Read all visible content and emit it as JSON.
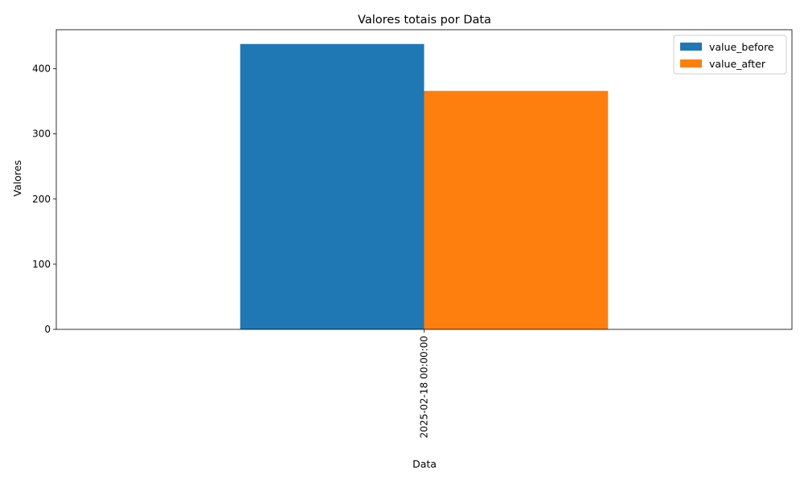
{
  "chart_data": {
    "type": "bar",
    "title": "Valores totais por Data",
    "xlabel": "Data",
    "ylabel": "Valores",
    "categories": [
      "2025-02-18 00:00:00"
    ],
    "series": [
      {
        "name": "value_before",
        "values": [
          438
        ],
        "color": "#1f77b4"
      },
      {
        "name": "value_after",
        "values": [
          366
        ],
        "color": "#ff7f0e"
      }
    ],
    "ylim": [
      0,
      459.9
    ],
    "yticks": [
      0,
      100,
      200,
      300,
      400
    ],
    "grid": false,
    "legend_position": "top-right"
  }
}
